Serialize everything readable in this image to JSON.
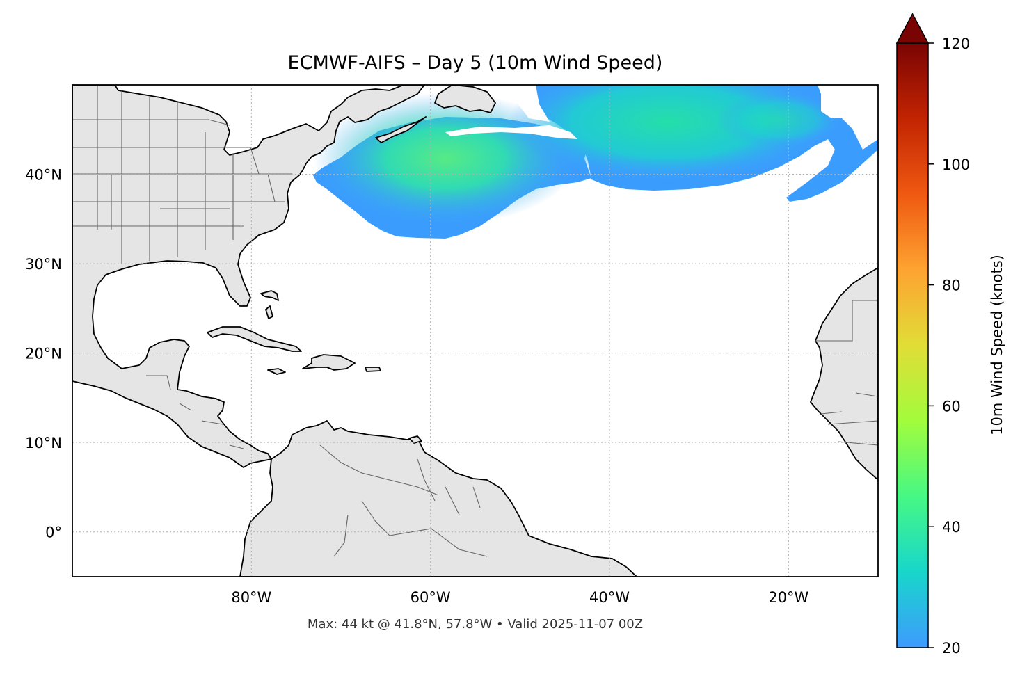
{
  "title": "ECMWF-AIFS – Day 5 (10m Wind Speed)",
  "footer": "Max: 44 kt @ 41.8°N, 57.8°W • Valid 2025-11-07 00Z",
  "map": {
    "extent": {
      "lon": [
        -100,
        -10
      ],
      "lat": [
        -5,
        50
      ]
    },
    "lat_ticks": [
      {
        "value": 40,
        "label": "40°N"
      },
      {
        "value": 30,
        "label": "30°N"
      },
      {
        "value": 20,
        "label": "20°N"
      },
      {
        "value": 10,
        "label": "10°N"
      },
      {
        "value": 0,
        "label": "0°"
      }
    ],
    "lon_ticks": [
      {
        "value": -80,
        "label": "80°W"
      },
      {
        "value": -60,
        "label": "60°W"
      },
      {
        "value": -40,
        "label": "40°W"
      },
      {
        "value": -20,
        "label": "20°W"
      }
    ],
    "gridlines": true,
    "land_color": "#e5e5e5",
    "ocean_color": "#ffffff",
    "coastline_color": "#000000",
    "border_color": "#666666",
    "wind_field": {
      "regions": [
        {
          "name": "western band",
          "lon_range": [
            -72,
            -48
          ],
          "lat_range": [
            33,
            45
          ]
        },
        {
          "name": "eastern band",
          "lon_range": [
            -50,
            -10
          ],
          "lat_range": [
            37,
            50
          ]
        }
      ],
      "max": {
        "value": 44,
        "units": "kt",
        "lat": 41.8,
        "lon": -57.8
      }
    }
  },
  "colorbar": {
    "label": "10m Wind Speed (knots)",
    "min": 20,
    "max": 120,
    "extend": "max",
    "colormap": "turbo",
    "ticks": [
      20,
      40,
      60,
      80,
      100,
      120
    ],
    "stops": [
      "#3e9bfe",
      "#18d6cb",
      "#46f884",
      "#a2fc3c",
      "#e1dd37",
      "#fea331",
      "#ef5911",
      "#c22402",
      "#7a0403"
    ]
  }
}
